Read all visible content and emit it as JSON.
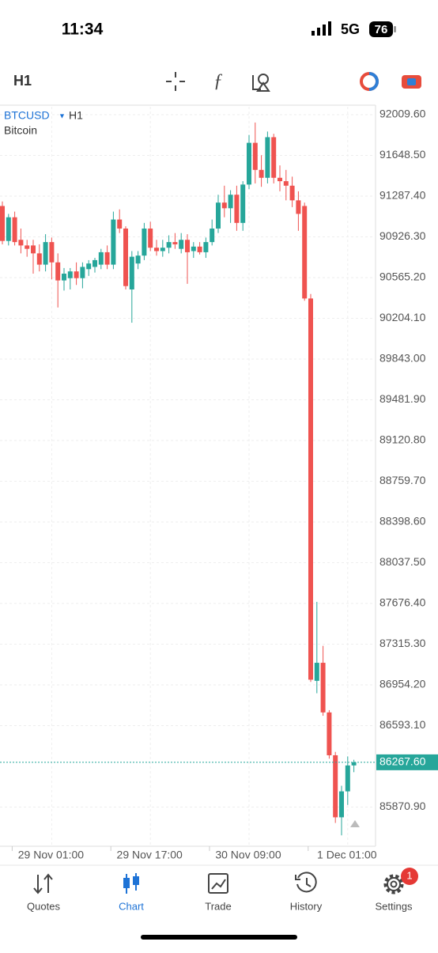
{
  "status_bar": {
    "time": "11:34",
    "network": "5G",
    "battery": "76"
  },
  "toolbar": {
    "timeframe": "H1"
  },
  "chart_data": {
    "type": "candlestick",
    "symbol": "BTCUSD",
    "timeframe": "H1",
    "description": "Bitcoin",
    "up_color": "#26a69a",
    "down_color": "#ef5350",
    "categories": [
      null,
      null,
      null,
      null,
      null,
      null,
      null,
      null,
      "29 Nov 01:00",
      null,
      null,
      null,
      null,
      null,
      null,
      null,
      null,
      null,
      null,
      null,
      null,
      null,
      null,
      null,
      "29 Nov 17:00",
      null,
      null,
      null,
      null,
      null,
      null,
      null,
      null,
      null,
      null,
      null,
      null,
      null,
      null,
      null,
      "30 Nov 09:00",
      null,
      null,
      null,
      null,
      null,
      null,
      null,
      null,
      null,
      null,
      null,
      null,
      null,
      null,
      null,
      "1 Dec 01:00",
      null
    ],
    "open": [
      91200,
      90890,
      91100,
      90900,
      90850,
      90850,
      90780,
      90680,
      90880,
      90700,
      90540,
      90560,
      90620,
      90560,
      90640,
      90660,
      90680,
      90790,
      90680,
      91080,
      91000,
      90460,
      90690,
      90760,
      91000,
      90830,
      90800,
      90830,
      90880,
      90820,
      90900,
      90800,
      90840,
      90790,
      90880,
      91000,
      91230,
      91180,
      91300,
      91050,
      91390,
      91760,
      91520,
      91450,
      91810,
      91450,
      91420,
      91380,
      91250,
      91200,
      90380,
      86990,
      87150,
      86710,
      86330,
      85780,
      86010,
      86240
    ],
    "high": [
      91240,
      91130,
      91150,
      91000,
      90900,
      90900,
      90860,
      90950,
      90920,
      90780,
      90650,
      90650,
      90700,
      90700,
      90720,
      90740,
      90820,
      90850,
      91150,
      91170,
      91020,
      90800,
      90800,
      91050,
      91060,
      90900,
      90900,
      90940,
      90960,
      90960,
      90950,
      90880,
      90880,
      90920,
      91080,
      91300,
      91380,
      91340,
      91380,
      91420,
      91830,
      91940,
      91650,
      91860,
      91840,
      91560,
      91520,
      91460,
      91330,
      91230,
      90420,
      87690,
      87300,
      86730,
      86360,
      86060,
      86320,
      86290
    ],
    "low": [
      90860,
      90850,
      90850,
      90780,
      90750,
      90600,
      90620,
      90620,
      90550,
      90300,
      90450,
      90460,
      90500,
      90470,
      90580,
      90610,
      90640,
      90640,
      90640,
      90960,
      90460,
      90165,
      90640,
      90720,
      90800,
      90760,
      90750,
      90780,
      90820,
      90780,
      90510,
      90740,
      90770,
      90740,
      90850,
      90960,
      91100,
      91050,
      90980,
      90980,
      91350,
      91400,
      91370,
      91400,
      91400,
      91330,
      91250,
      91190,
      90980,
      90360,
      86980,
      86880,
      86680,
      86300,
      85730,
      85620,
      85890,
      86180
    ],
    "close": [
      90890,
      91100,
      90880,
      90850,
      90820,
      90780,
      90680,
      90880,
      90700,
      90540,
      90600,
      90620,
      90560,
      90660,
      90690,
      90720,
      90790,
      90680,
      91080,
      91000,
      90490,
      90750,
      90760,
      91000,
      90830,
      90800,
      90830,
      90880,
      90860,
      90900,
      90790,
      90840,
      90790,
      90880,
      91000,
      91230,
      91180,
      91300,
      91050,
      91390,
      91760,
      91520,
      91450,
      91810,
      91450,
      91420,
      91380,
      91250,
      91130,
      90380,
      87000,
      87150,
      86710,
      86330,
      85780,
      86010,
      86240,
      86267.6
    ],
    "ylim": [
      85523.5,
      92079.7
    ],
    "yticks": [
      {
        "value": 92009.6,
        "label": "92009.60"
      },
      {
        "value": 91648.5,
        "label": "91648.50"
      },
      {
        "value": 91287.4,
        "label": "91287.40"
      },
      {
        "value": 90926.3,
        "label": "90926.30"
      },
      {
        "value": 90565.2,
        "label": "90565.20"
      },
      {
        "value": 90204.1,
        "label": "90204.10"
      },
      {
        "value": 89843,
        "label": "89843.00"
      },
      {
        "value": 89481.9,
        "label": "89481.90"
      },
      {
        "value": 89120.8,
        "label": "89120.80"
      },
      {
        "value": 88759.7,
        "label": "88759.70"
      },
      {
        "value": 88398.6,
        "label": "88398.60"
      },
      {
        "value": 88037.5,
        "label": "88037.50"
      },
      {
        "value": 87676.4,
        "label": "87676.40"
      },
      {
        "value": 87315.3,
        "label": "87315.30"
      },
      {
        "value": 86954.2,
        "label": "86954.20"
      },
      {
        "value": 86593.1,
        "label": "86593.10"
      },
      {
        "value": 85870.9,
        "label": "85870.90"
      }
    ],
    "current_price": {
      "value": 86267.6,
      "label": "86267.60"
    },
    "grid": true
  },
  "tab_bar": {
    "tabs": [
      "Quotes",
      "Chart",
      "Trade",
      "History",
      "Settings"
    ],
    "settings_badge": "1"
  }
}
